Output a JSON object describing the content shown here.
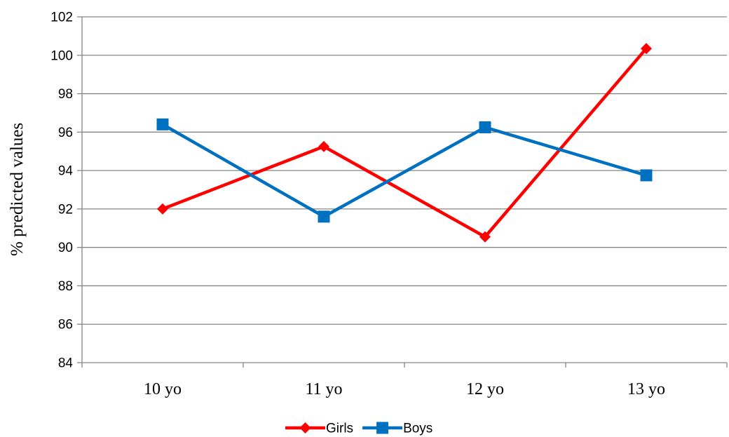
{
  "chart_data": {
    "type": "line",
    "title": "",
    "xlabel": "",
    "ylabel": "% predicted values",
    "categories": [
      "10 yo",
      "11 yo",
      "12 yo",
      "13 yo"
    ],
    "ylim": [
      84,
      102
    ],
    "yticks": [
      84,
      86,
      88,
      90,
      92,
      94,
      96,
      98,
      100,
      102
    ],
    "grid": true,
    "legend_position": "bottom-center",
    "series": [
      {
        "name": "Girls",
        "values": [
          92.0,
          95.25,
          90.55,
          100.35
        ],
        "color": "#ff0000",
        "marker": "diamond"
      },
      {
        "name": "Boys",
        "values": [
          96.4,
          91.6,
          96.25,
          93.75
        ],
        "color": "#0070c0",
        "marker": "square"
      }
    ]
  }
}
